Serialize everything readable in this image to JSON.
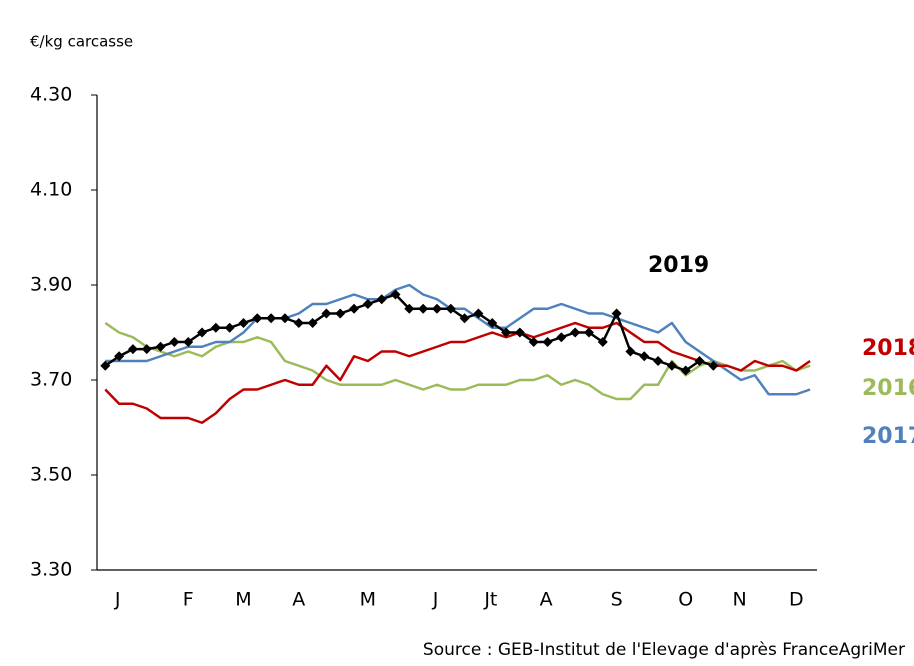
{
  "chart_data": {
    "type": "line",
    "y_label": "€/kg carcasse",
    "source": "Source : GEB-Institut de l'Elevage d'après FranceAgriMer",
    "x": [
      1,
      2,
      3,
      4,
      5,
      6,
      7,
      8,
      9,
      10,
      11,
      12,
      13,
      14,
      15,
      16,
      17,
      18,
      19,
      20,
      21,
      22,
      23,
      24,
      25,
      26,
      27,
      28,
      29,
      30,
      31,
      32,
      33,
      34,
      35,
      36,
      37,
      38,
      39,
      40,
      41,
      42,
      43,
      44,
      45,
      46,
      47,
      48,
      49,
      50,
      51,
      52
    ],
    "xlim": [
      0.4,
      52.5
    ],
    "xticks": [
      {
        "value": 1.9,
        "label": "J"
      },
      {
        "value": 7,
        "label": "F"
      },
      {
        "value": 11,
        "label": "M"
      },
      {
        "value": 15,
        "label": "A"
      },
      {
        "value": 20,
        "label": "M"
      },
      {
        "value": 24.9,
        "label": "J"
      },
      {
        "value": 28.9,
        "label": "Jt"
      },
      {
        "value": 32.9,
        "label": "A"
      },
      {
        "value": 38,
        "label": "S"
      },
      {
        "value": 43,
        "label": "O"
      },
      {
        "value": 46.9,
        "label": "N"
      },
      {
        "value": 51,
        "label": "D"
      }
    ],
    "ylim": [
      3.3,
      4.3
    ],
    "yticks": [
      {
        "value": 3.3,
        "label": "3.30"
      },
      {
        "value": 3.5,
        "label": "3.50"
      },
      {
        "value": 3.7,
        "label": "3.70"
      },
      {
        "value": 3.9,
        "label": "3.90"
      },
      {
        "value": 4.1,
        "label": "4.10"
      },
      {
        "value": 4.3,
        "label": "4.30"
      }
    ],
    "series": [
      {
        "name": "2016",
        "color": "#9bbb59",
        "markers": false,
        "values": [
          3.82,
          3.8,
          3.79,
          3.77,
          3.76,
          3.75,
          3.76,
          3.75,
          3.77,
          3.78,
          3.78,
          3.79,
          3.78,
          3.74,
          3.73,
          3.72,
          3.7,
          3.69,
          3.69,
          3.69,
          3.69,
          3.7,
          3.69,
          3.68,
          3.69,
          3.68,
          3.68,
          3.69,
          3.69,
          3.69,
          3.7,
          3.7,
          3.71,
          3.69,
          3.7,
          3.69,
          3.67,
          3.66,
          3.66,
          3.69,
          3.69,
          3.74,
          3.71,
          3.73,
          3.74,
          3.73,
          3.72,
          3.72,
          3.73,
          3.74,
          3.72,
          3.73
        ]
      },
      {
        "name": "2017",
        "color": "#4f81bd",
        "markers": false,
        "values": [
          3.74,
          3.74,
          3.74,
          3.74,
          3.75,
          3.76,
          3.77,
          3.77,
          3.78,
          3.78,
          3.8,
          3.83,
          3.83,
          3.83,
          3.84,
          3.86,
          3.86,
          3.87,
          3.88,
          3.87,
          3.87,
          3.89,
          3.9,
          3.88,
          3.87,
          3.85,
          3.85,
          3.83,
          3.81,
          3.81,
          3.83,
          3.85,
          3.85,
          3.86,
          3.85,
          3.84,
          3.84,
          3.83,
          3.82,
          3.81,
          3.8,
          3.82,
          3.78,
          3.76,
          3.74,
          3.72,
          3.7,
          3.71,
          3.67,
          3.67,
          3.67,
          3.68
        ]
      },
      {
        "name": "2018",
        "color": "#c00000",
        "markers": false,
        "values": [
          3.68,
          3.65,
          3.65,
          3.64,
          3.62,
          3.62,
          3.62,
          3.61,
          3.63,
          3.66,
          3.68,
          3.68,
          3.69,
          3.7,
          3.69,
          3.69,
          3.73,
          3.7,
          3.75,
          3.74,
          3.76,
          3.76,
          3.75,
          3.76,
          3.77,
          3.78,
          3.78,
          3.79,
          3.8,
          3.79,
          3.8,
          3.79,
          3.8,
          3.81,
          3.82,
          3.81,
          3.81,
          3.82,
          3.8,
          3.78,
          3.78,
          3.76,
          3.75,
          3.74,
          3.73,
          3.73,
          3.72,
          3.74,
          3.73,
          3.73,
          3.72,
          3.74
        ]
      },
      {
        "name": "2019",
        "color": "#000000",
        "markers": true,
        "values": [
          3.73,
          3.75,
          3.765,
          3.765,
          3.77,
          3.78,
          3.78,
          3.8,
          3.81,
          3.81,
          3.82,
          3.83,
          3.83,
          3.83,
          3.82,
          3.82,
          3.84,
          3.84,
          3.85,
          3.86,
          3.87,
          3.88,
          3.85,
          3.85,
          3.85,
          3.85,
          3.83,
          3.84,
          3.82,
          3.8,
          3.8,
          3.78,
          3.78,
          3.79,
          3.8,
          3.8,
          3.78,
          3.84,
          3.76,
          3.75,
          3.74,
          3.73,
          3.72,
          3.74,
          3.73,
          null,
          null,
          null,
          null,
          null,
          null,
          null
        ]
      }
    ]
  }
}
